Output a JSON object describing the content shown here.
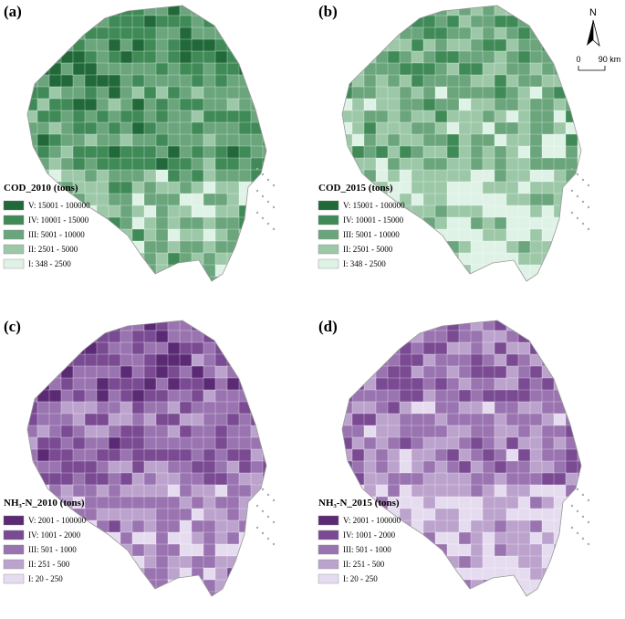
{
  "panels": [
    {
      "label": "(a)",
      "legend_title": "COD_2010 (tons)",
      "classes": [
        {
          "label": "V: 15001 - 100000",
          "color": "#22693a"
        },
        {
          "label": "IV: 10001 - 15000",
          "color": "#3f8a57"
        },
        {
          "label": "III: 5001 - 10000",
          "color": "#6aa57c"
        },
        {
          "label": "II: 2501 - 5000",
          "color": "#9cc8a8"
        },
        {
          "label": "I: 348 - 2500",
          "color": "#dff2e6"
        }
      ]
    },
    {
      "label": "(b)",
      "legend_title": "COD_2015 (tons)",
      "classes": [
        {
          "label": "V: 15001 - 100000",
          "color": "#22693a"
        },
        {
          "label": "IV: 10001 - 15000",
          "color": "#3f8a57"
        },
        {
          "label": "III: 5001 - 10000",
          "color": "#6aa57c"
        },
        {
          "label": "II: 2501 - 5000",
          "color": "#9cc8a8"
        },
        {
          "label": "I: 348 - 2500",
          "color": "#dff2e6"
        }
      ]
    },
    {
      "label": "(c)",
      "legend_title": "NH₃-N_2010 (tons)",
      "classes": [
        {
          "label": "V: 2001 - 100000",
          "color": "#5b2a74"
        },
        {
          "label": "IV: 1001 - 2000",
          "color": "#7a4a93"
        },
        {
          "label": "III: 501 - 1000",
          "color": "#9a74b0"
        },
        {
          "label": "II: 251 - 500",
          "color": "#bca3cd"
        },
        {
          "label": "I: 20 - 250",
          "color": "#e6dcef"
        }
      ]
    },
    {
      "label": "(d)",
      "legend_title": "NH₃-N_2015 (tons)",
      "classes": [
        {
          "label": "V: 2001 - 100000",
          "color": "#5b2a74"
        },
        {
          "label": "IV: 1001 - 2000",
          "color": "#7a4a93"
        },
        {
          "label": "III: 501 - 1000",
          "color": "#9a74b0"
        },
        {
          "label": "II: 251 - 500",
          "color": "#bca3cd"
        },
        {
          "label": "I: 20 - 250",
          "color": "#e6dcef"
        }
      ]
    }
  ],
  "north_label": "N",
  "scale": {
    "start": "0",
    "end": "90 km"
  }
}
